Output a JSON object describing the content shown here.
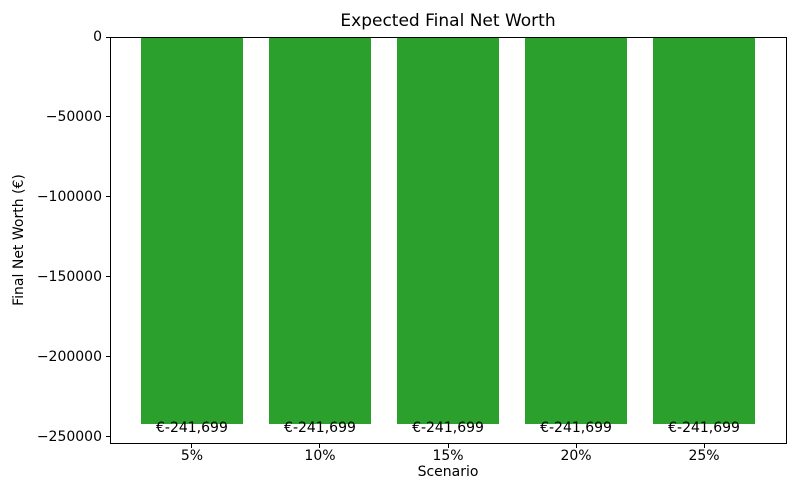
{
  "title": "Expected Final Net Worth",
  "chart_data": {
    "type": "bar",
    "title": "Expected Final Net Worth",
    "xlabel": "Scenario",
    "ylabel": "Final Net Worth (€)",
    "categories": [
      "5%",
      "10%",
      "15%",
      "20%",
      "25%"
    ],
    "values": [
      -241699,
      -241699,
      -241699,
      -241699,
      -241699
    ],
    "bar_labels": [
      "€-241,699",
      "€-241,699",
      "€-241,699",
      "€-241,699",
      "€-241,699"
    ],
    "bar_color": "#2ca02c",
    "ylim": [
      -253784,
      0
    ],
    "xlim": [
      -0.64,
      4.64
    ],
    "bar_width_units": 0.8,
    "yticks": [
      0,
      -50000,
      -100000,
      -150000,
      -200000,
      -250000
    ],
    "ytick_labels": [
      "0",
      "−50000",
      "−100000",
      "−150000",
      "−200000",
      "−250000"
    ],
    "grid": false,
    "legend": null
  }
}
